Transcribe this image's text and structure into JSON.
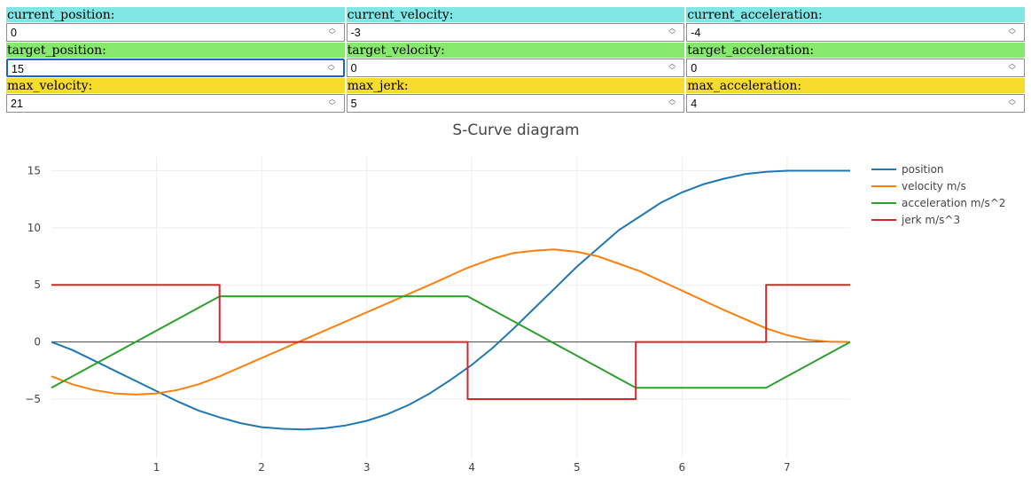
{
  "colors": {
    "row1": "#81e6e6",
    "row2": "#86e86c",
    "row3": "#f7dc2c"
  },
  "fields": [
    [
      {
        "label": "current_position:",
        "value": "0"
      },
      {
        "label": "current_velocity:",
        "value": "-3"
      },
      {
        "label": "current_acceleration:",
        "value": "-4"
      }
    ],
    [
      {
        "label": "target_position:",
        "value": "15"
      },
      {
        "label": "target_velocity:",
        "value": "0"
      },
      {
        "label": "target_acceleration:",
        "value": "0"
      }
    ],
    [
      {
        "label": "max_velocity:",
        "value": "21"
      },
      {
        "label": "max_jerk:",
        "value": "5"
      },
      {
        "label": "max_acceleration:",
        "value": "4"
      }
    ]
  ],
  "chart_data": {
    "type": "line",
    "title": "S-Curve diagram",
    "xlim": [
      0,
      7.6
    ],
    "ylim": [
      -10.2,
      16.2
    ],
    "x_ticks": [
      1,
      2,
      3,
      4,
      5,
      6,
      7
    ],
    "y_ticks": [
      -5,
      0,
      5,
      10,
      15
    ],
    "y_tick_labels": [
      "−5",
      "0",
      "5",
      "10",
      "15"
    ],
    "grid": true,
    "legend": "top-right",
    "series": [
      {
        "name": "position",
        "color": "#1f77b4",
        "x": [
          0,
          0.2,
          0.4,
          0.6,
          0.8,
          1.0,
          1.2,
          1.4,
          1.6,
          1.8,
          2.0,
          2.2,
          2.4,
          2.6,
          2.8,
          3.0,
          3.2,
          3.4,
          3.6,
          3.8,
          4.0,
          4.2,
          4.4,
          4.6,
          4.8,
          5.0,
          5.2,
          5.4,
          5.6,
          5.8,
          6.0,
          6.2,
          6.4,
          6.6,
          6.8,
          7.0,
          7.2,
          7.4,
          7.6
        ],
        "y": [
          0,
          -0.7,
          -1.6,
          -2.5,
          -3.4,
          -4.3,
          -5.2,
          -6.0,
          -6.6,
          -7.1,
          -7.45,
          -7.6,
          -7.65,
          -7.55,
          -7.3,
          -6.9,
          -6.3,
          -5.5,
          -4.5,
          -3.3,
          -2.0,
          -0.5,
          1.2,
          3.0,
          4.8,
          6.6,
          8.2,
          9.8,
          11.0,
          12.2,
          13.1,
          13.8,
          14.3,
          14.7,
          14.9,
          15.0,
          15.0,
          15.0,
          15.0
        ]
      },
      {
        "name": "velocity m/s",
        "color": "#ff7f0e",
        "x": [
          0,
          0.2,
          0.4,
          0.6,
          0.8,
          1.0,
          1.2,
          1.4,
          1.6,
          2.0,
          2.4,
          2.8,
          3.2,
          3.6,
          3.96,
          4.2,
          4.4,
          4.6,
          4.78,
          5.0,
          5.2,
          5.6,
          6.0,
          6.4,
          6.8,
          7.0,
          7.2,
          7.4,
          7.6
        ],
        "y": [
          -3,
          -3.7,
          -4.2,
          -4.5,
          -4.6,
          -4.5,
          -4.2,
          -3.7,
          -3.0,
          -1.4,
          0.2,
          1.8,
          3.4,
          5.0,
          6.5,
          7.3,
          7.8,
          8.0,
          8.1,
          7.9,
          7.5,
          6.2,
          4.5,
          2.8,
          1.2,
          0.6,
          0.2,
          0.03,
          0
        ]
      },
      {
        "name": "acceleration m/s^2",
        "color": "#2ca02c",
        "x": [
          0,
          1.6,
          3.96,
          5.56,
          6.8,
          7.6
        ],
        "y": [
          -4,
          4,
          4,
          -4,
          -4,
          0
        ]
      },
      {
        "name": "jerk m/s^3",
        "color": "#d62728",
        "x": [
          0,
          1.6,
          1.6,
          3.96,
          3.96,
          5.56,
          5.56,
          6.8,
          6.8,
          7.6
        ],
        "y": [
          5,
          5,
          0,
          0,
          -5,
          -5,
          0,
          0,
          5,
          5
        ]
      }
    ]
  }
}
